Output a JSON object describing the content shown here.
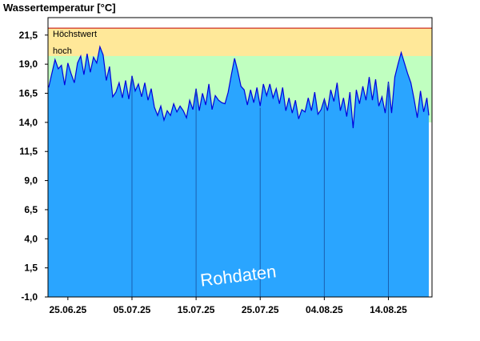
{
  "chart_data": {
    "type": "area",
    "title": "Wassertemperatur [°C]",
    "watermark": "Rohdaten",
    "y_ticks": [
      "21,5",
      "19,0",
      "16,5",
      "14,0",
      "11,5",
      "9,0",
      "6,5",
      "4,0",
      "1,5",
      "-1,0"
    ],
    "y_tick_values": [
      21.5,
      19.0,
      16.5,
      14.0,
      11.5,
      9.0,
      6.5,
      4.0,
      1.5,
      -1.0
    ],
    "ylim": [
      -1.0,
      23.0
    ],
    "x_ticks": [
      "25.06.25",
      "05.07.25",
      "15.07.25",
      "25.07.25",
      "04.08.25",
      "14.08.25"
    ],
    "x_tick_days": [
      0,
      10,
      20,
      30,
      40,
      50
    ],
    "xlim_days": [
      -3.1,
      56.8
    ],
    "bands": [
      {
        "label": "Höchstwert",
        "from": 19.7,
        "to": 22.1,
        "color": "#ffe899"
      },
      {
        "label": "hoch",
        "from": 14.0,
        "to": 19.7,
        "color": "#c0ffc0"
      }
    ],
    "threshold_line": {
      "value": 22.1,
      "color": "#c00000"
    },
    "colors": {
      "fill": "#2aa5ff",
      "line": "#0000dd",
      "vline": "#1a5fb0",
      "frame": "#000000"
    },
    "series": [
      {
        "days": [
          -3.0,
          -2.5,
          -2.0,
          -1.5,
          -1.0,
          -0.5,
          0.0,
          0.5,
          1.0,
          1.5,
          2.0,
          2.5,
          3.0,
          3.5,
          4.0,
          4.5,
          5.0,
          5.5,
          6.0,
          6.5,
          7.0,
          7.5,
          8.0,
          8.5,
          9.0,
          9.5,
          10.0,
          10.5,
          11.0,
          11.5,
          12.0,
          12.5,
          13.0,
          13.5,
          14.0,
          14.5,
          15.0,
          15.5,
          16.0,
          16.5,
          17.0,
          17.5,
          18.0,
          18.5,
          19.0,
          19.5,
          20.0,
          20.5,
          21.0,
          21.5,
          22.0,
          22.5,
          23.0,
          23.5,
          24.0,
          24.5,
          25.0,
          25.5,
          26.0,
          26.5,
          27.0,
          27.5,
          28.0,
          28.5,
          29.0,
          29.5,
          30.0,
          30.5,
          31.0,
          31.5,
          32.0,
          32.5,
          33.0,
          33.5,
          34.0,
          34.5,
          35.0,
          35.5,
          36.0,
          36.5,
          37.0,
          37.5,
          38.0,
          38.5,
          39.0,
          39.5,
          40.0,
          40.5,
          41.0,
          41.5,
          42.0,
          42.5,
          43.0,
          43.5,
          44.0,
          44.5,
          45.0,
          45.5,
          46.0,
          46.5,
          47.0,
          47.5,
          48.0,
          48.5,
          49.0,
          49.5,
          50.0,
          50.5,
          51.0,
          51.5,
          52.0,
          52.5,
          53.0,
          53.5,
          54.0,
          54.5,
          55.0,
          55.5,
          56.0,
          56.3
        ],
        "values": [
          17.0,
          18.2,
          19.4,
          18.6,
          18.9,
          17.2,
          19.1,
          18.2,
          17.4,
          19.1,
          19.7,
          18.1,
          19.9,
          18.3,
          19.6,
          19.1,
          20.5,
          19.8,
          17.6,
          18.8,
          16.2,
          16.6,
          17.4,
          16.1,
          17.6,
          16.0,
          18.0,
          16.7,
          17.3,
          16.2,
          17.4,
          15.9,
          16.9,
          15.3,
          14.6,
          15.4,
          14.2,
          15.0,
          14.6,
          15.6,
          14.9,
          15.4,
          15.0,
          14.4,
          15.9,
          15.1,
          16.9,
          15.0,
          16.5,
          15.5,
          17.3,
          15.1,
          16.3,
          15.9,
          15.7,
          15.6,
          16.6,
          18.1,
          19.5,
          18.4,
          17.1,
          16.8,
          15.5,
          16.8,
          15.7,
          17.0,
          15.4,
          17.3,
          16.3,
          17.3,
          16.1,
          16.9,
          15.6,
          17.0,
          15.0,
          16.1,
          14.8,
          15.9,
          14.3,
          15.1,
          14.9,
          16.1,
          15.0,
          16.6,
          14.7,
          15.1,
          16.0,
          15.0,
          16.8,
          15.8,
          17.4,
          15.0,
          16.1,
          14.5,
          16.6,
          13.5,
          16.8,
          15.6,
          17.1,
          15.9,
          17.9,
          15.9,
          17.7,
          15.4,
          16.2,
          14.8,
          17.5,
          14.8,
          17.9,
          19.0,
          20.0,
          19.1,
          18.2,
          17.4,
          16.0,
          14.4,
          16.7,
          14.9,
          16.1,
          14.6
        ]
      }
    ]
  }
}
